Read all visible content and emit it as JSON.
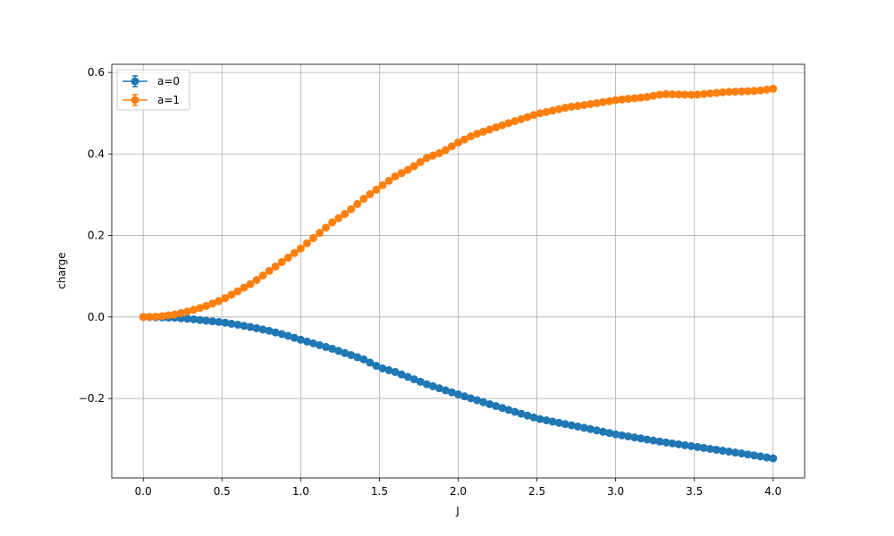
{
  "chart_data": {
    "type": "scatter",
    "title": "",
    "xlabel": "J",
    "ylabel": "charge",
    "xlim": [
      -0.2,
      4.2
    ],
    "ylim": [
      -0.395,
      0.62
    ],
    "xticks": [
      0.0,
      0.5,
      1.0,
      1.5,
      2.0,
      2.5,
      3.0,
      3.5,
      4.0
    ],
    "xtick_labels": [
      "0.0",
      "0.5",
      "1.0",
      "1.5",
      "2.0",
      "2.5",
      "3.0",
      "3.5",
      "4.0"
    ],
    "yticks": [
      -0.2,
      0.0,
      0.2,
      0.4,
      0.6
    ],
    "ytick_labels": [
      "−0.2",
      "0.0",
      "0.2",
      "0.4",
      "0.6"
    ],
    "grid": true,
    "legend_position": "top-left",
    "x_range": {
      "start": 0.0,
      "end": 4.0,
      "count": 101
    },
    "series": [
      {
        "name": "a=0",
        "color": "#1f77b4",
        "marker": "circle",
        "errorbars": true,
        "anchors": [
          [
            0.0,
            0.0
          ],
          [
            0.2,
            -0.002
          ],
          [
            0.3,
            -0.005
          ],
          [
            0.4,
            -0.009
          ],
          [
            0.5,
            -0.013
          ],
          [
            0.6,
            -0.019
          ],
          [
            0.7,
            -0.026
          ],
          [
            0.8,
            -0.034
          ],
          [
            0.9,
            -0.044
          ],
          [
            1.0,
            -0.056
          ],
          [
            1.2,
            -0.078
          ],
          [
            1.4,
            -0.104
          ],
          [
            1.5,
            -0.124
          ],
          [
            1.6,
            -0.135
          ],
          [
            1.8,
            -0.165
          ],
          [
            2.0,
            -0.19
          ],
          [
            2.2,
            -0.214
          ],
          [
            2.5,
            -0.249
          ],
          [
            2.8,
            -0.272
          ],
          [
            3.0,
            -0.288
          ],
          [
            3.3,
            -0.307
          ],
          [
            3.5,
            -0.318
          ],
          [
            3.8,
            -0.335
          ],
          [
            4.0,
            -0.347
          ]
        ]
      },
      {
        "name": "a=1",
        "color": "#ff7f0e",
        "marker": "circle",
        "errorbars": true,
        "anchors": [
          [
            0.0,
            0.0
          ],
          [
            0.1,
            0.001
          ],
          [
            0.2,
            0.006
          ],
          [
            0.3,
            0.015
          ],
          [
            0.4,
            0.027
          ],
          [
            0.5,
            0.042
          ],
          [
            0.6,
            0.063
          ],
          [
            0.7,
            0.085
          ],
          [
            0.8,
            0.113
          ],
          [
            0.9,
            0.14
          ],
          [
            1.0,
            0.168
          ],
          [
            1.1,
            0.2
          ],
          [
            1.2,
            0.232
          ],
          [
            1.3,
            0.258
          ],
          [
            1.4,
            0.29
          ],
          [
            1.5,
            0.318
          ],
          [
            1.6,
            0.345
          ],
          [
            1.7,
            0.365
          ],
          [
            1.8,
            0.39
          ],
          [
            1.9,
            0.405
          ],
          [
            2.0,
            0.428
          ],
          [
            2.1,
            0.447
          ],
          [
            2.2,
            0.46
          ],
          [
            2.3,
            0.473
          ],
          [
            2.5,
            0.498
          ],
          [
            2.7,
            0.515
          ],
          [
            2.8,
            0.52
          ],
          [
            3.0,
            0.532
          ],
          [
            3.2,
            0.54
          ],
          [
            3.3,
            0.547
          ],
          [
            3.5,
            0.545
          ],
          [
            3.7,
            0.552
          ],
          [
            3.9,
            0.555
          ],
          [
            4.0,
            0.56
          ]
        ]
      }
    ]
  }
}
